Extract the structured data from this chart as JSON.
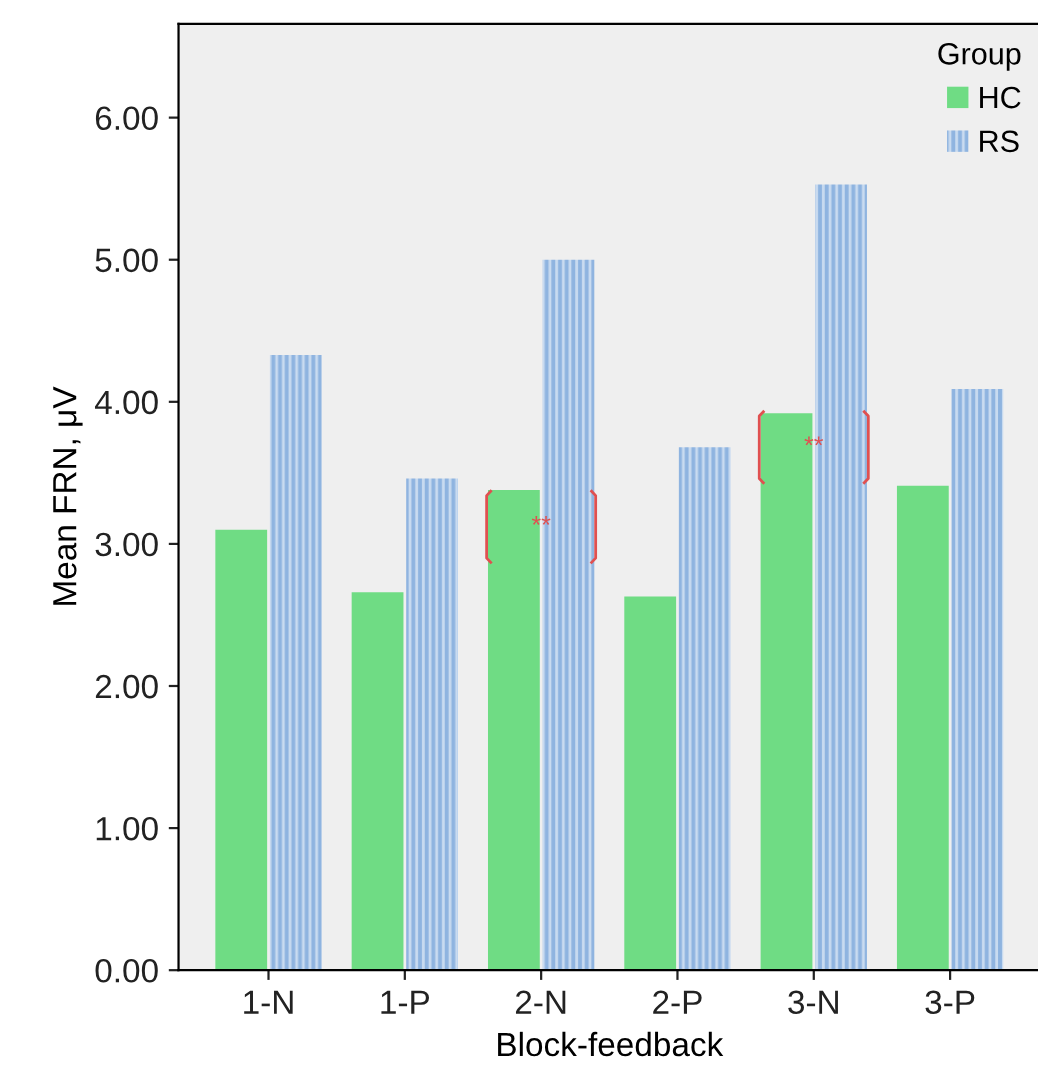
{
  "chart_data": {
    "type": "bar",
    "xlabel": "Block-feedback",
    "ylabel": "Mean FRN, μV",
    "legend_title": "Group",
    "categories": [
      "1-N",
      "1-P",
      "2-N",
      "2-P",
      "3-N",
      "3-P"
    ],
    "series": [
      {
        "name": "HC",
        "color": "#6fdc84",
        "values": [
          3.1,
          2.66,
          3.38,
          2.63,
          3.92,
          3.41
        ]
      },
      {
        "name": "RS",
        "color": "#8fb4e0",
        "values": [
          4.33,
          3.46,
          5.0,
          3.68,
          5.53,
          4.09
        ]
      }
    ],
    "ylim": [
      0,
      6.66
    ],
    "yticks": [
      {
        "value": 0,
        "label": "0.00"
      },
      {
        "value": 1,
        "label": "1.00"
      },
      {
        "value": 2,
        "label": "2.00"
      },
      {
        "value": 3,
        "label": "3.00"
      },
      {
        "value": 4,
        "label": "4.00"
      },
      {
        "value": 5,
        "label": "5.00"
      },
      {
        "value": 6,
        "label": "6.00"
      }
    ],
    "annotations": [
      {
        "text": "**",
        "x": "2-N",
        "y": 3.12
      },
      {
        "text": "**",
        "x": "3-N",
        "y": 3.68
      }
    ],
    "grid": false,
    "legend": "top right"
  }
}
